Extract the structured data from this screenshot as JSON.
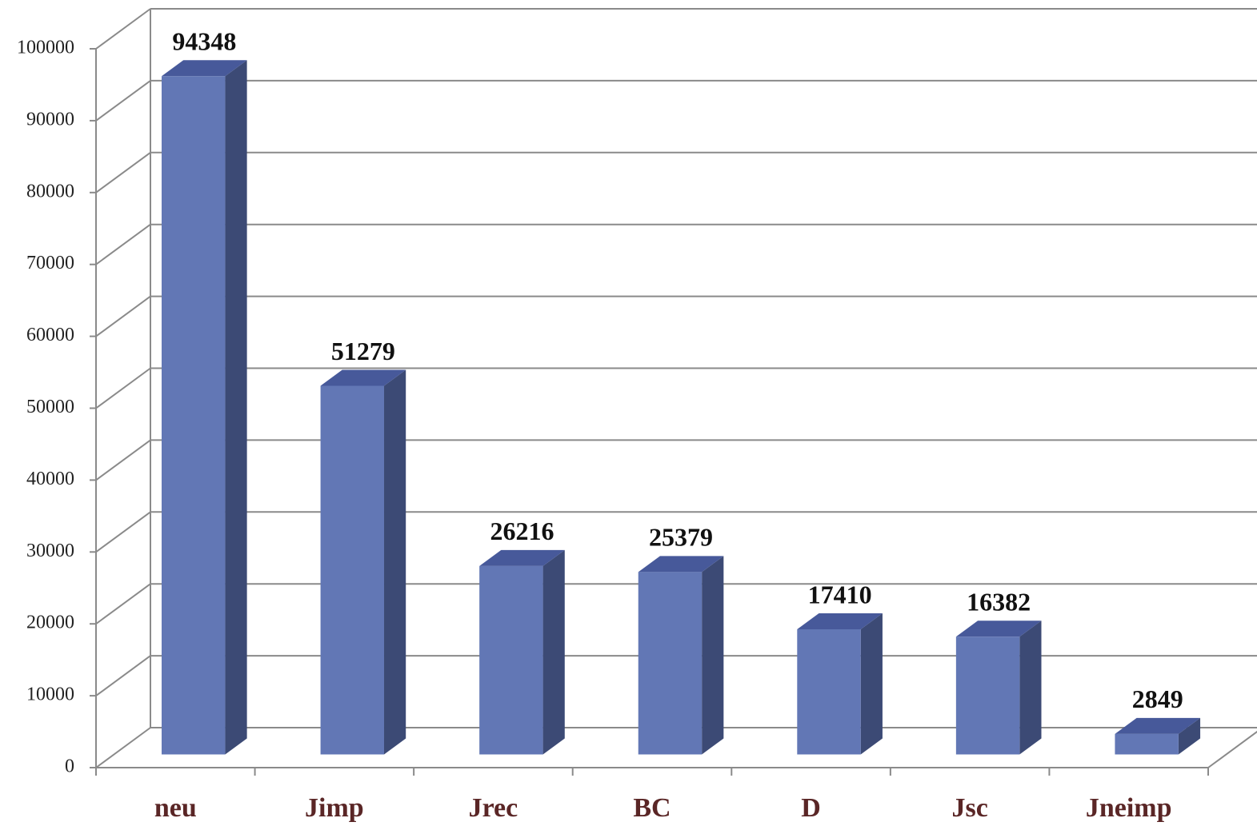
{
  "chart_data": {
    "type": "bar",
    "categories": [
      "neu",
      "Jimp",
      "Jrec",
      "BC",
      "D",
      "Jsc",
      "Jneimp"
    ],
    "values": [
      94348,
      51279,
      26216,
      25379,
      17410,
      16382,
      2849
    ],
    "color": "#6277b5",
    "ylim": [
      0,
      100000
    ],
    "yticks": [
      0,
      10000,
      20000,
      30000,
      40000,
      50000,
      60000,
      70000,
      80000,
      90000,
      100000
    ],
    "grid": true
  }
}
